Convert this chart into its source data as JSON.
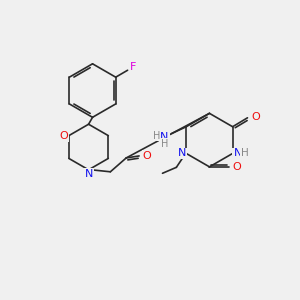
{
  "background_color": "#f0f0f0",
  "bond_color": "#2a2a2a",
  "colors": {
    "N": "#1010ee",
    "O": "#ee1010",
    "F": "#dd00dd",
    "H": "#888888",
    "C": "#2a2a2a"
  },
  "figsize": [
    3.0,
    3.0
  ],
  "dpi": 100,
  "lw": 1.2,
  "fontsize": 7.5
}
